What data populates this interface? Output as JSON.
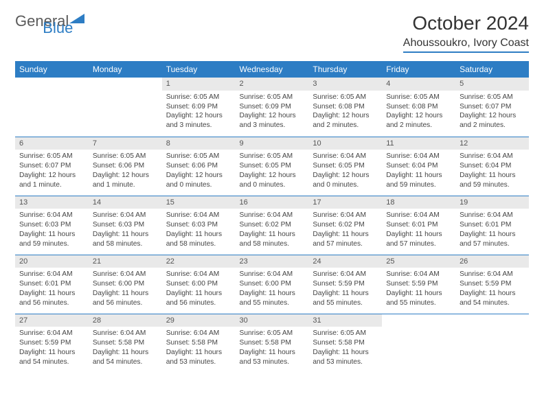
{
  "brand": {
    "part1": "General",
    "part2": "Blue"
  },
  "title": "October 2024",
  "location": "Ahoussoukro, Ivory Coast",
  "colors": {
    "accent": "#2d7dc4",
    "header_bg": "#2d7dc4",
    "daynum_bg": "#e9e9e9"
  },
  "days_of_week": [
    "Sunday",
    "Monday",
    "Tuesday",
    "Wednesday",
    "Thursday",
    "Friday",
    "Saturday"
  ],
  "weeks": [
    [
      {
        "empty": true
      },
      {
        "empty": true
      },
      {
        "n": "1",
        "sunrise": "6:05 AM",
        "sunset": "6:09 PM",
        "daylight": "12 hours and 3 minutes."
      },
      {
        "n": "2",
        "sunrise": "6:05 AM",
        "sunset": "6:09 PM",
        "daylight": "12 hours and 3 minutes."
      },
      {
        "n": "3",
        "sunrise": "6:05 AM",
        "sunset": "6:08 PM",
        "daylight": "12 hours and 2 minutes."
      },
      {
        "n": "4",
        "sunrise": "6:05 AM",
        "sunset": "6:08 PM",
        "daylight": "12 hours and 2 minutes."
      },
      {
        "n": "5",
        "sunrise": "6:05 AM",
        "sunset": "6:07 PM",
        "daylight": "12 hours and 2 minutes."
      }
    ],
    [
      {
        "n": "6",
        "sunrise": "6:05 AM",
        "sunset": "6:07 PM",
        "daylight": "12 hours and 1 minute."
      },
      {
        "n": "7",
        "sunrise": "6:05 AM",
        "sunset": "6:06 PM",
        "daylight": "12 hours and 1 minute."
      },
      {
        "n": "8",
        "sunrise": "6:05 AM",
        "sunset": "6:06 PM",
        "daylight": "12 hours and 0 minutes."
      },
      {
        "n": "9",
        "sunrise": "6:05 AM",
        "sunset": "6:05 PM",
        "daylight": "12 hours and 0 minutes."
      },
      {
        "n": "10",
        "sunrise": "6:04 AM",
        "sunset": "6:05 PM",
        "daylight": "12 hours and 0 minutes."
      },
      {
        "n": "11",
        "sunrise": "6:04 AM",
        "sunset": "6:04 PM",
        "daylight": "11 hours and 59 minutes."
      },
      {
        "n": "12",
        "sunrise": "6:04 AM",
        "sunset": "6:04 PM",
        "daylight": "11 hours and 59 minutes."
      }
    ],
    [
      {
        "n": "13",
        "sunrise": "6:04 AM",
        "sunset": "6:03 PM",
        "daylight": "11 hours and 59 minutes."
      },
      {
        "n": "14",
        "sunrise": "6:04 AM",
        "sunset": "6:03 PM",
        "daylight": "11 hours and 58 minutes."
      },
      {
        "n": "15",
        "sunrise": "6:04 AM",
        "sunset": "6:03 PM",
        "daylight": "11 hours and 58 minutes."
      },
      {
        "n": "16",
        "sunrise": "6:04 AM",
        "sunset": "6:02 PM",
        "daylight": "11 hours and 58 minutes."
      },
      {
        "n": "17",
        "sunrise": "6:04 AM",
        "sunset": "6:02 PM",
        "daylight": "11 hours and 57 minutes."
      },
      {
        "n": "18",
        "sunrise": "6:04 AM",
        "sunset": "6:01 PM",
        "daylight": "11 hours and 57 minutes."
      },
      {
        "n": "19",
        "sunrise": "6:04 AM",
        "sunset": "6:01 PM",
        "daylight": "11 hours and 57 minutes."
      }
    ],
    [
      {
        "n": "20",
        "sunrise": "6:04 AM",
        "sunset": "6:01 PM",
        "daylight": "11 hours and 56 minutes."
      },
      {
        "n": "21",
        "sunrise": "6:04 AM",
        "sunset": "6:00 PM",
        "daylight": "11 hours and 56 minutes."
      },
      {
        "n": "22",
        "sunrise": "6:04 AM",
        "sunset": "6:00 PM",
        "daylight": "11 hours and 56 minutes."
      },
      {
        "n": "23",
        "sunrise": "6:04 AM",
        "sunset": "6:00 PM",
        "daylight": "11 hours and 55 minutes."
      },
      {
        "n": "24",
        "sunrise": "6:04 AM",
        "sunset": "5:59 PM",
        "daylight": "11 hours and 55 minutes."
      },
      {
        "n": "25",
        "sunrise": "6:04 AM",
        "sunset": "5:59 PM",
        "daylight": "11 hours and 55 minutes."
      },
      {
        "n": "26",
        "sunrise": "6:04 AM",
        "sunset": "5:59 PM",
        "daylight": "11 hours and 54 minutes."
      }
    ],
    [
      {
        "n": "27",
        "sunrise": "6:04 AM",
        "sunset": "5:59 PM",
        "daylight": "11 hours and 54 minutes."
      },
      {
        "n": "28",
        "sunrise": "6:04 AM",
        "sunset": "5:58 PM",
        "daylight": "11 hours and 54 minutes."
      },
      {
        "n": "29",
        "sunrise": "6:04 AM",
        "sunset": "5:58 PM",
        "daylight": "11 hours and 53 minutes."
      },
      {
        "n": "30",
        "sunrise": "6:05 AM",
        "sunset": "5:58 PM",
        "daylight": "11 hours and 53 minutes."
      },
      {
        "n": "31",
        "sunrise": "6:05 AM",
        "sunset": "5:58 PM",
        "daylight": "11 hours and 53 minutes."
      },
      {
        "empty": true
      },
      {
        "empty": true
      }
    ]
  ],
  "labels": {
    "sunrise": "Sunrise:",
    "sunset": "Sunset:",
    "daylight": "Daylight:"
  }
}
